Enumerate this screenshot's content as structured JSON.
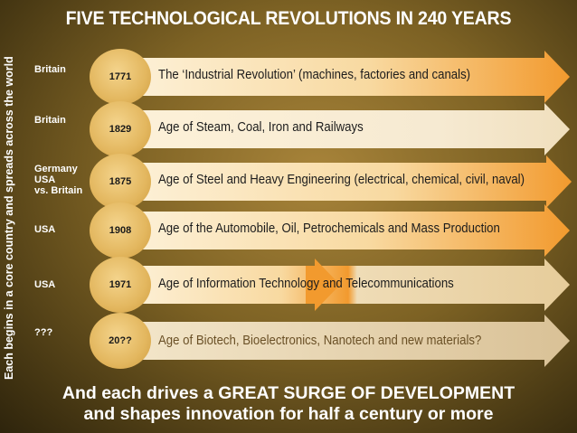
{
  "title": "FIVE TECHNOLOGICAL REVOLUTIONS IN 240 YEARS",
  "side_label": "Each begins in a core country and spreads across the world",
  "revolutions": [
    {
      "country": "Britain",
      "year": "1771",
      "label": "The ‘Industrial Revolution’ (machines, factories and canals)"
    },
    {
      "country": "Britain",
      "year": "1829",
      "label": "Age of Steam, Coal, Iron and Railways"
    },
    {
      "country": "Germany\nUSA\nvs. Britain",
      "year": "1875",
      "label": "Age of Steel and Heavy Engineering (electrical, chemical, civil, naval)"
    },
    {
      "country": "USA",
      "year": "1908",
      "label": "Age of the Automobile, Oil, Petrochemicals and Mass Production"
    },
    {
      "country": "USA",
      "year": "1971",
      "label": "Age of Information Technology and Telecommunications"
    },
    {
      "country": "???",
      "year": "20??",
      "label": "Age of Biotech, Bioelectronics, Nanotech and new materials?"
    }
  ],
  "footer": {
    "line1": "And each drives a GREAT SURGE OF DEVELOPMENT",
    "line2": "and shapes innovation for half a century or more"
  },
  "colors": {
    "arrow_light": "#fbe9c4",
    "arrow_orange": "#f29a2e",
    "arrow_pale": "#f1e2c2",
    "circle": "#e3b75f"
  }
}
